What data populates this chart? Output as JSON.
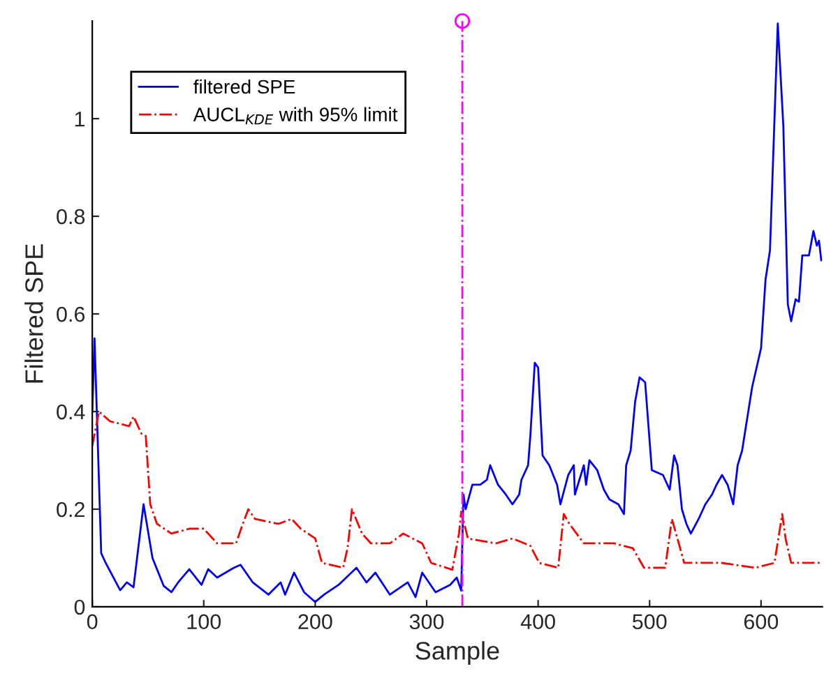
{
  "chart_data": {
    "type": "line",
    "xlabel": "Sample",
    "ylabel": "Filtered SPE",
    "xlim": [
      0,
      655
    ],
    "ylim": [
      0,
      1.2
    ],
    "xticks": [
      0,
      100,
      200,
      300,
      400,
      500,
      600
    ],
    "yticks": [
      0,
      0.2,
      0.4,
      0.6,
      0.8,
      1
    ],
    "grid": false,
    "legend": "top left",
    "series": [
      {
        "name": "filtered SPE",
        "color": "#0000ff",
        "line_style": "solid",
        "x": [
          0,
          2,
          8,
          12,
          25,
          31,
          37,
          46,
          54,
          64,
          71,
          77,
          87,
          98,
          104,
          112,
          127,
          133,
          144,
          158,
          169,
          173,
          181,
          190,
          200,
          208,
          221,
          237,
          246,
          254,
          267,
          283,
          290,
          296,
          308,
          321,
          327,
          331,
          333,
          335,
          341,
          348,
          354,
          357,
          364,
          371,
          377,
          383,
          385,
          391,
          393,
          397,
          400,
          404,
          410,
          417,
          420,
          427,
          432,
          433,
          441,
          443,
          446,
          453,
          459,
          464,
          472,
          477,
          479,
          483,
          487,
          491,
          496,
          502,
          512,
          518,
          522,
          525,
          529,
          533,
          537,
          544,
          550,
          556,
          560,
          565,
          570,
          575,
          579,
          583,
          592,
          600,
          604,
          608,
          615,
          620,
          624,
          627,
          631,
          634,
          637,
          643,
          647,
          650,
          652,
          654
        ],
        "values": [
          0.4,
          0.55,
          0.11,
          0.09,
          0.034,
          0.05,
          0.04,
          0.21,
          0.1,
          0.043,
          0.03,
          0.05,
          0.077,
          0.045,
          0.077,
          0.06,
          0.08,
          0.086,
          0.05,
          0.025,
          0.05,
          0.025,
          0.07,
          0.03,
          0.01,
          0.025,
          0.045,
          0.08,
          0.05,
          0.07,
          0.025,
          0.05,
          0.02,
          0.07,
          0.03,
          0.045,
          0.06,
          0.033,
          0.23,
          0.2,
          0.25,
          0.25,
          0.26,
          0.29,
          0.25,
          0.23,
          0.21,
          0.23,
          0.26,
          0.29,
          0.35,
          0.5,
          0.49,
          0.31,
          0.29,
          0.25,
          0.21,
          0.27,
          0.29,
          0.23,
          0.29,
          0.25,
          0.3,
          0.28,
          0.24,
          0.22,
          0.21,
          0.19,
          0.29,
          0.32,
          0.42,
          0.47,
          0.46,
          0.28,
          0.27,
          0.24,
          0.31,
          0.29,
          0.2,
          0.17,
          0.15,
          0.18,
          0.21,
          0.23,
          0.25,
          0.27,
          0.25,
          0.21,
          0.29,
          0.32,
          0.45,
          0.53,
          0.67,
          0.73,
          1.195,
          0.985,
          0.62,
          0.585,
          0.63,
          0.625,
          0.72,
          0.72,
          0.77,
          0.74,
          0.75,
          0.71
        ]
      },
      {
        "name": "AUCL$_{KDE}$ with 95% limit",
        "color": "#ff0000",
        "line_style": "dashdot",
        "x": [
          0,
          6,
          16,
          25,
          33,
          37,
          44,
          48,
          52,
          58,
          71,
          87,
          100,
          112,
          129,
          135,
          140,
          146,
          167,
          179,
          187,
          200,
          206,
          225,
          229,
          233,
          242,
          250,
          267,
          279,
          296,
          304,
          323,
          329,
          331,
          337,
          362,
          377,
          393,
          401,
          418,
          423,
          428,
          441,
          468,
          485,
          495,
          514,
          520,
          525,
          531,
          564,
          595,
          612,
          619,
          622,
          627,
          645,
          654
        ],
        "values": [
          0.33,
          0.4,
          0.38,
          0.375,
          0.37,
          0.39,
          0.355,
          0.35,
          0.21,
          0.17,
          0.15,
          0.16,
          0.16,
          0.13,
          0.13,
          0.17,
          0.2,
          0.18,
          0.17,
          0.18,
          0.16,
          0.14,
          0.09,
          0.08,
          0.12,
          0.2,
          0.15,
          0.13,
          0.13,
          0.15,
          0.13,
          0.09,
          0.076,
          0.15,
          0.195,
          0.14,
          0.13,
          0.14,
          0.125,
          0.09,
          0.08,
          0.19,
          0.17,
          0.13,
          0.13,
          0.12,
          0.08,
          0.08,
          0.18,
          0.14,
          0.09,
          0.09,
          0.08,
          0.09,
          0.19,
          0.14,
          0.09,
          0.09,
          0.09
        ]
      },
      {
        "type": "lollipop",
        "color": "#ff00ff",
        "line_style": "dashdot",
        "marker": "circle",
        "x": [
          332
        ],
        "values": [
          1.2
        ]
      }
    ]
  }
}
